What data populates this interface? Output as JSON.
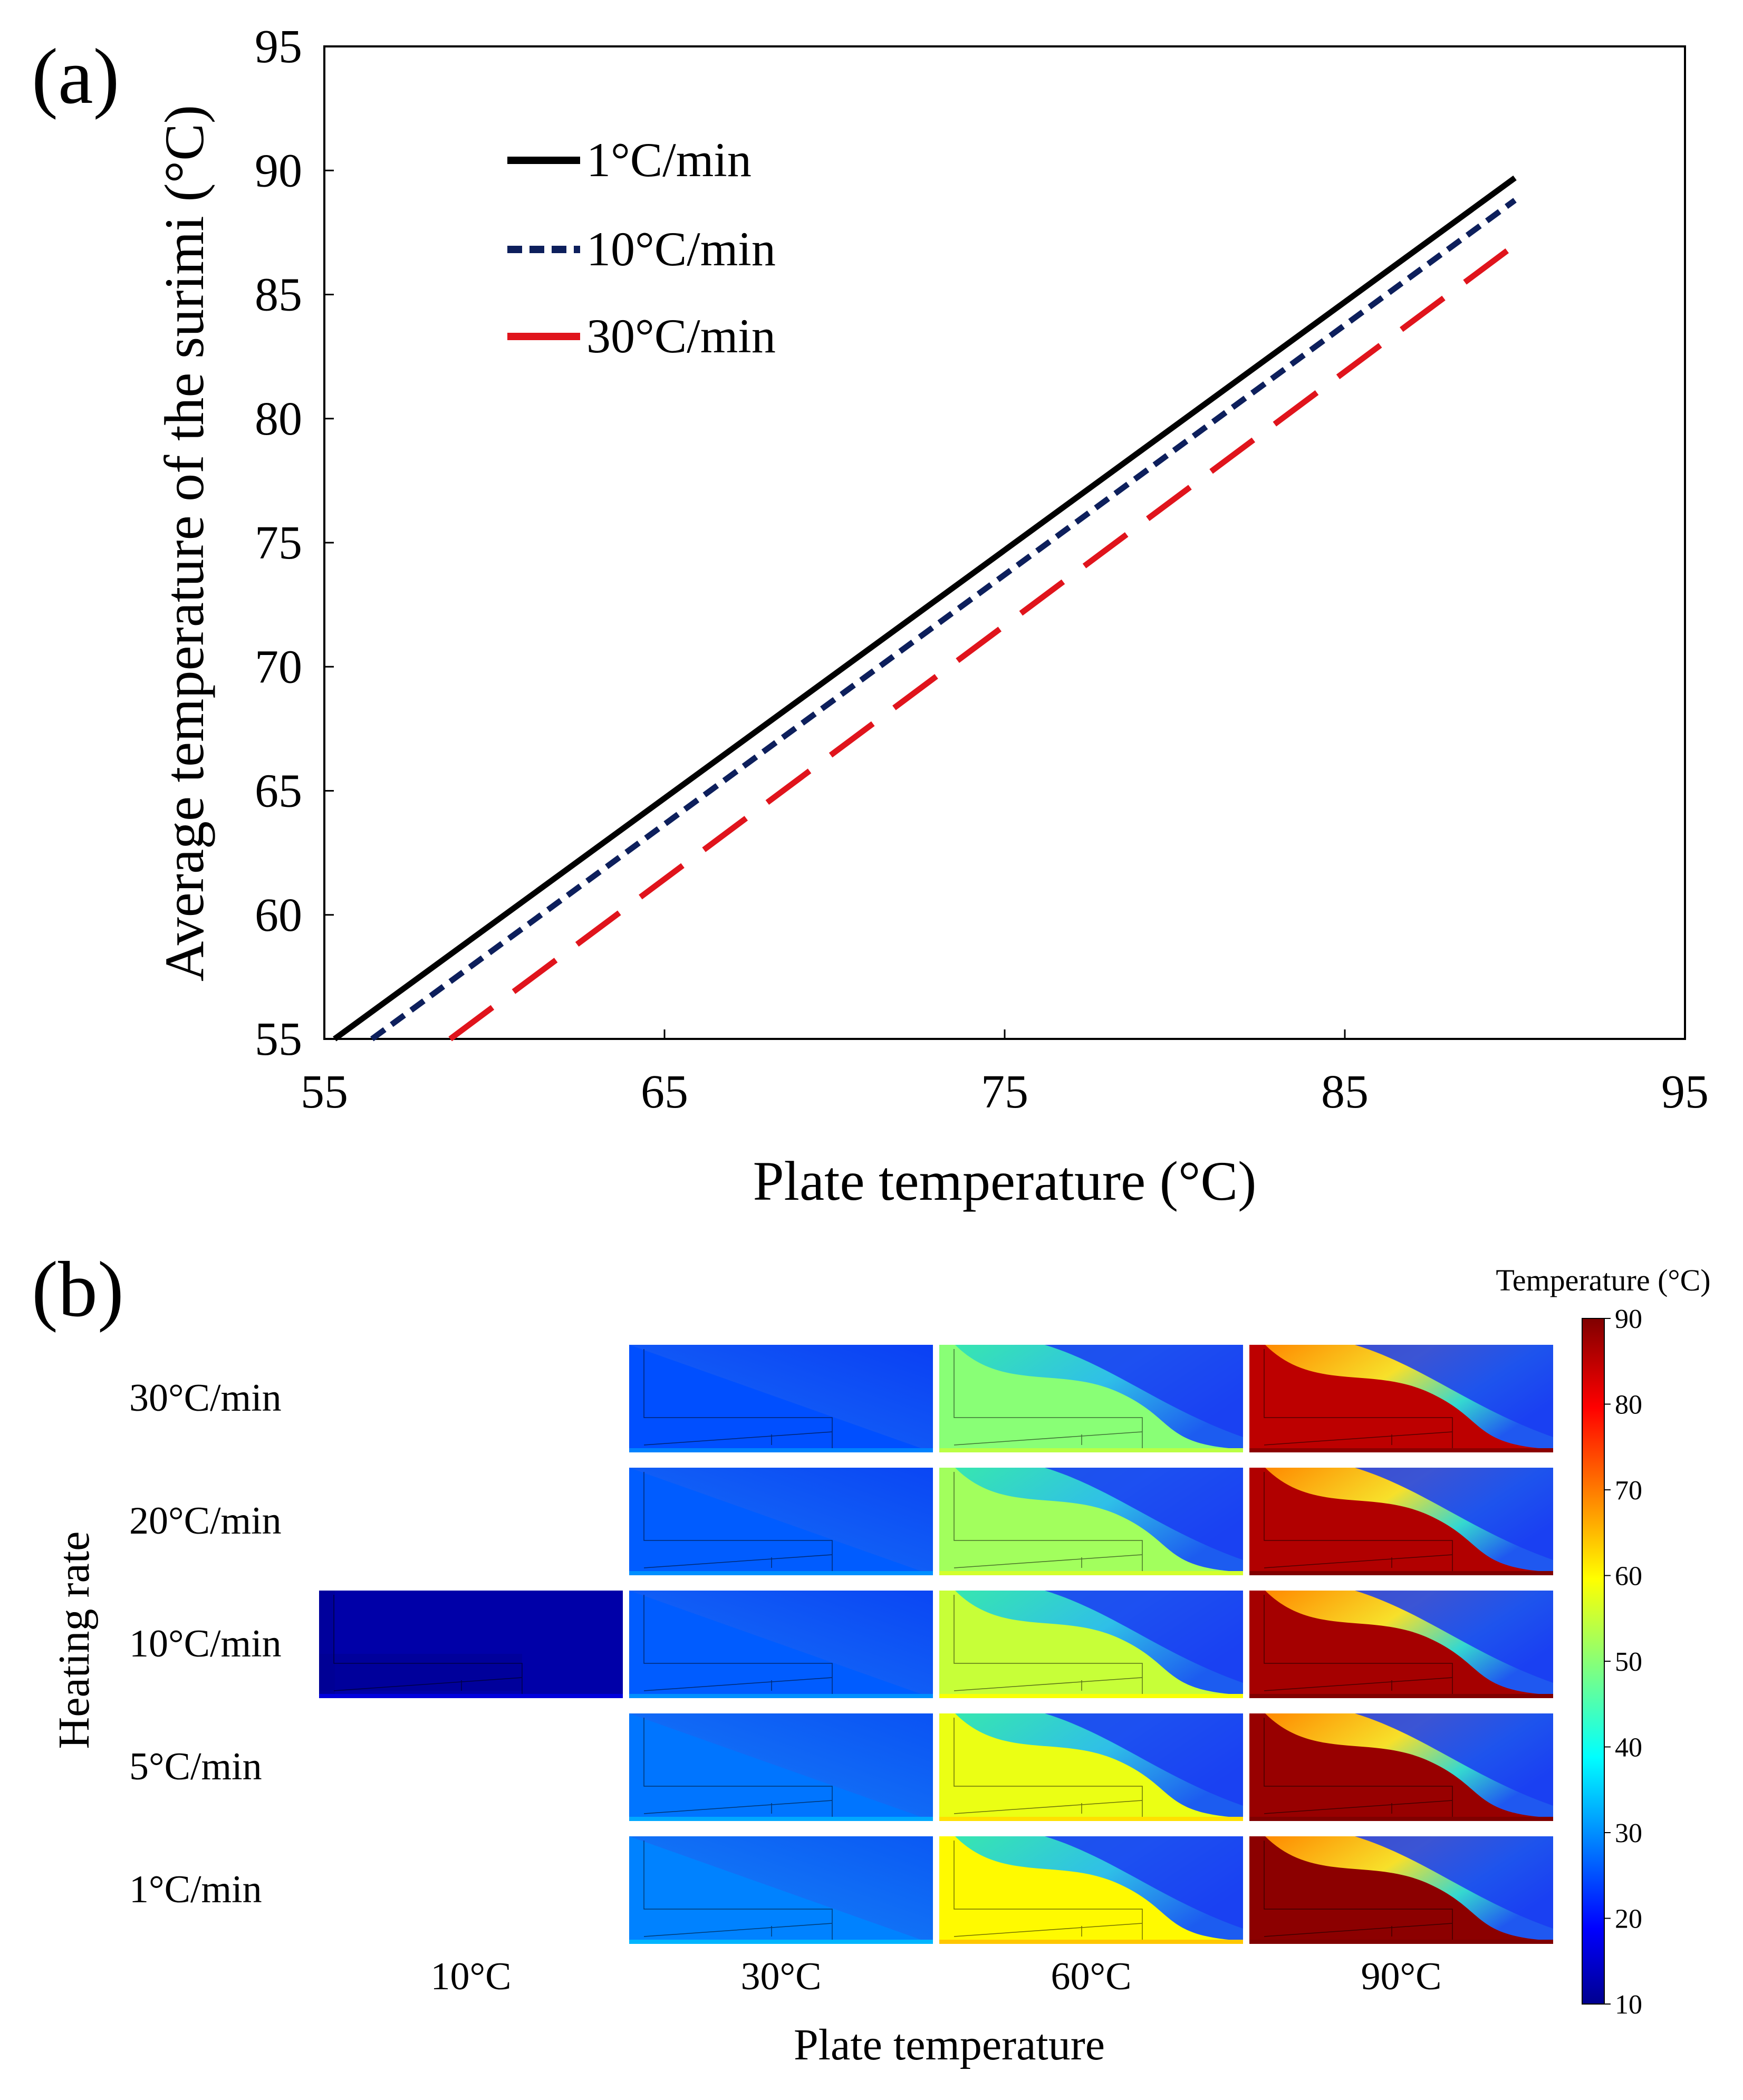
{
  "panels": {
    "a": {
      "label": "(a)"
    },
    "b": {
      "label": "(b)"
    }
  },
  "colors": {
    "series_1": "#000000",
    "series_10": "#0d1f5c",
    "series_30": "#e0141c"
  },
  "chart_data": [
    {
      "type": "line",
      "panel": "(a)",
      "xlabel": "Plate temperature (°C)",
      "ylabel": "Average temperature of the surimi (°C)",
      "xlim": [
        55,
        95
      ],
      "ylim": [
        55,
        95
      ],
      "xticks": [
        55,
        65,
        75,
        85,
        95
      ],
      "yticks": [
        55,
        60,
        65,
        70,
        75,
        80,
        85,
        90,
        95
      ],
      "legend_position": "top-left",
      "series": [
        {
          "name": "1°C/min",
          "style": "solid",
          "color": "#000000",
          "x": [
            55.3,
            90
          ],
          "y": [
            55,
            89.7
          ]
        },
        {
          "name": "10°C/min",
          "style": "dashed",
          "color": "#0d1f5c",
          "x": [
            56.4,
            90
          ],
          "y": [
            55,
            88.8
          ]
        },
        {
          "name": "30°C/min",
          "style": "long-dash",
          "color": "#e0141c",
          "x": [
            58.7,
            90
          ],
          "y": [
            55,
            87.0
          ]
        }
      ]
    },
    {
      "type": "heatmap",
      "panel": "(b)",
      "xlabel": "Plate temperature",
      "ylabel": "Heating rate",
      "columns": [
        "10°C",
        "30°C",
        "60°C",
        "90°C"
      ],
      "rows": [
        "30°C/min",
        "20°C/min",
        "10°C/min",
        "5°C/min",
        "1°C/min"
      ],
      "cells": [
        [
          null,
          25,
          50,
          85
        ],
        [
          null,
          26,
          52,
          86
        ],
        [
          12,
          26,
          55,
          87
        ],
        [
          null,
          28,
          58,
          88
        ],
        [
          null,
          29,
          60,
          89
        ]
      ],
      "colorbar": {
        "title": "Temperature (°C)",
        "min": 10,
        "max": 90,
        "ticks": [
          90,
          80,
          70,
          60,
          50,
          40,
          30,
          20,
          10
        ]
      }
    }
  ]
}
